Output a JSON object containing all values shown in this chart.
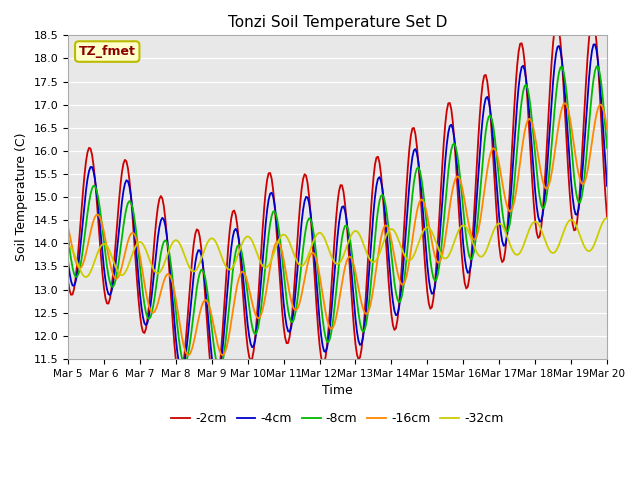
{
  "title": "Tonzi Soil Temperature Set D",
  "xlabel": "Time",
  "ylabel": "Soil Temperature (C)",
  "ylim": [
    11.5,
    18.5
  ],
  "annotation": "TZ_fmet",
  "x_tick_labels": [
    "Mar 5",
    "Mar 6",
    "Mar 7",
    "Mar 8",
    "Mar 9",
    "Mar 10",
    "Mar 11",
    "Mar 12",
    "Mar 13",
    "Mar 14",
    "Mar 15",
    "Mar 16",
    "Mar 17",
    "Mar 18",
    "Mar 19",
    "Mar 20"
  ],
  "series": {
    "-2cm": {
      "color": "#cc0000",
      "lw": 1.3
    },
    "-4cm": {
      "color": "#0000cc",
      "lw": 1.3
    },
    "-8cm": {
      "color": "#00bb00",
      "lw": 1.3
    },
    "-16cm": {
      "color": "#ff8800",
      "lw": 1.3
    },
    "-32cm": {
      "color": "#cccc00",
      "lw": 1.3
    }
  },
  "bg_color": "#e8e8e8"
}
